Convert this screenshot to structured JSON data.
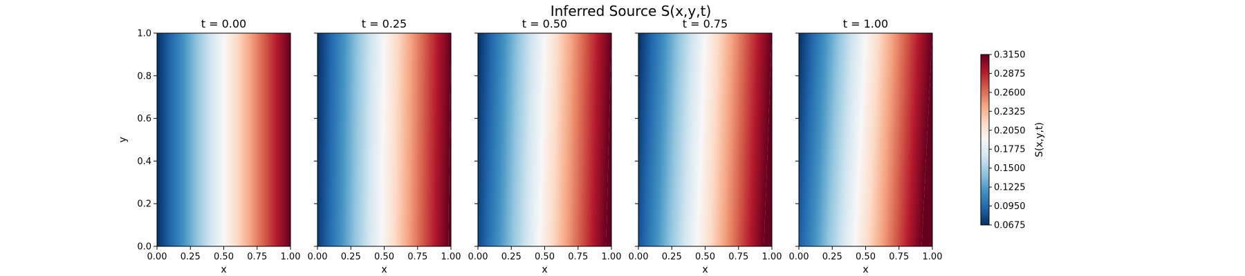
{
  "chart_data": {
    "type": "heatmap",
    "title": "Inferred Source S(x,y,t)",
    "xlabel": "x",
    "ylabel": "y",
    "xlim": [
      0,
      1
    ],
    "ylim": [
      0,
      1
    ],
    "xticks": [
      "0.00",
      "0.25",
      "0.50",
      "0.75",
      "1.00"
    ],
    "yticks": [
      "0.0",
      "0.2",
      "0.4",
      "0.6",
      "0.8",
      "1.0"
    ],
    "panels": [
      {
        "t": 0.0,
        "title": "t = 0.00",
        "tilt": 0.0
      },
      {
        "t": 0.25,
        "title": "t = 0.25",
        "tilt": 0.02
      },
      {
        "t": 0.5,
        "title": "t = 0.50",
        "tilt": 0.04
      },
      {
        "t": 0.75,
        "title": "t = 0.75",
        "tilt": 0.06
      },
      {
        "t": 1.0,
        "title": "t = 1.00",
        "tilt": 0.08
      }
    ],
    "field": {
      "description": "S increases approximately linearly in x",
      "s_min": 0.0675,
      "s_max": 0.315
    },
    "colorbar": {
      "label": "S(x,y,t)",
      "colormap": "RdBu_r",
      "min": 0.0675,
      "max": 0.315,
      "ticks": [
        "0.0675",
        "0.0950",
        "0.1225",
        "0.1500",
        "0.1775",
        "0.2050",
        "0.2325",
        "0.2600",
        "0.2875",
        "0.3150"
      ]
    },
    "grid": false,
    "legend": "none"
  }
}
